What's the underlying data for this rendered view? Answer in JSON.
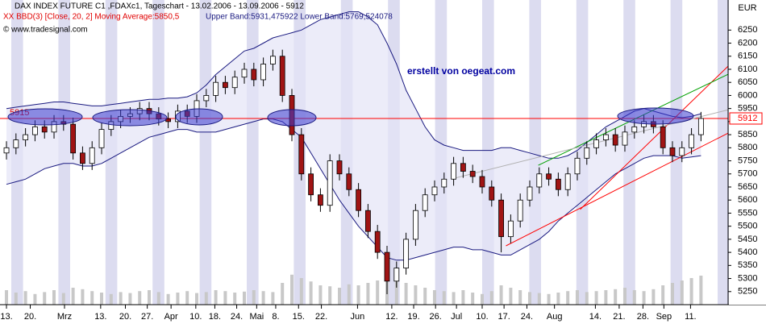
{
  "chart_data": {
    "type": "candlestick",
    "title": "DAX INDEX FUTURE C1 ,FDAXc1, Tageschart - 13.02.2006 - 13.09.2006 - 5912",
    "indicator_label": "XX BBD(3) [Close, 20, 2] Moving Average:5850,5",
    "band_label": "Upper Band:5931,475922 Lower Band:5769,524078",
    "copyright": "© www.tradesignal.com",
    "annotation": "erstellt von oegeat.com",
    "level_label": "5915",
    "y_axis_label": "EUR",
    "up_color": "#ffffff",
    "down_color": "#a01414",
    "band_color": "#1a1a80",
    "open": [
      5780,
      5800,
      5830,
      5850,
      5880,
      5860,
      5900,
      5890,
      5780,
      5740,
      5800,
      5870,
      5900,
      5920,
      5930,
      5950,
      5930,
      5910,
      5900,
      5940,
      5920,
      5980,
      6000,
      6050,
      6030,
      6070,
      6100,
      6060,
      6120,
      6150,
      6000,
      5850,
      5700,
      5620,
      5580,
      5750,
      5700,
      5640,
      5560,
      5480,
      5400,
      5290,
      5340,
      5450,
      5560,
      5620,
      5650,
      5680,
      5740,
      5710,
      5690,
      5650,
      5600,
      5460,
      5520,
      5600,
      5650,
      5700,
      5680,
      5640,
      5700,
      5760,
      5800,
      5830,
      5850,
      5810,
      5860,
      5880,
      5900,
      5880,
      5800,
      5770,
      5800,
      5850
    ],
    "high": [
      5825,
      5855,
      5875,
      5905,
      5905,
      5925,
      5925,
      5915,
      5805,
      5825,
      5895,
      5925,
      5945,
      5955,
      5975,
      5975,
      5955,
      5935,
      5965,
      5965,
      6005,
      6025,
      6075,
      6075,
      6095,
      6125,
      6125,
      6145,
      6175,
      6175,
      6025,
      5875,
      5725,
      5645,
      5775,
      5775,
      5725,
      5665,
      5585,
      5505,
      5425,
      5365,
      5475,
      5585,
      5645,
      5675,
      5705,
      5765,
      5765,
      5735,
      5715,
      5675,
      5625,
      5545,
      5625,
      5675,
      5725,
      5725,
      5705,
      5725,
      5785,
      5825,
      5855,
      5875,
      5875,
      5885,
      5905,
      5925,
      5925,
      5905,
      5825,
      5825,
      5875,
      5937
    ],
    "low": [
      5755,
      5775,
      5805,
      5825,
      5835,
      5835,
      5865,
      5755,
      5715,
      5715,
      5775,
      5845,
      5875,
      5895,
      5905,
      5905,
      5885,
      5875,
      5875,
      5895,
      5895,
      5955,
      5975,
      6005,
      6005,
      6045,
      6035,
      6035,
      6095,
      5975,
      5825,
      5675,
      5595,
      5555,
      5555,
      5675,
      5615,
      5535,
      5455,
      5375,
      5240,
      5265,
      5315,
      5425,
      5535,
      5595,
      5625,
      5655,
      5685,
      5665,
      5625,
      5575,
      5400,
      5435,
      5495,
      5575,
      5625,
      5655,
      5615,
      5615,
      5675,
      5735,
      5775,
      5805,
      5785,
      5785,
      5835,
      5855,
      5855,
      5775,
      5745,
      5745,
      5775,
      5825
    ],
    "close": [
      5800,
      5830,
      5850,
      5880,
      5860,
      5900,
      5890,
      5780,
      5740,
      5800,
      5870,
      5900,
      5920,
      5930,
      5950,
      5930,
      5910,
      5900,
      5940,
      5920,
      5980,
      6000,
      6050,
      6030,
      6070,
      6100,
      6060,
      6120,
      6150,
      6000,
      5850,
      5700,
      5620,
      5580,
      5750,
      5700,
      5640,
      5560,
      5480,
      5400,
      5290,
      5340,
      5450,
      5560,
      5620,
      5650,
      5680,
      5740,
      5710,
      5690,
      5650,
      5600,
      5460,
      5520,
      5600,
      5650,
      5700,
      5680,
      5640,
      5700,
      5760,
      5800,
      5830,
      5850,
      5810,
      5860,
      5880,
      5900,
      5880,
      5800,
      5770,
      5800,
      5850,
      5912
    ],
    "upper": [
      5950,
      5955,
      5960,
      5965,
      5970,
      5975,
      5975,
      5970,
      5965,
      5960,
      5960,
      5965,
      5970,
      5975,
      5980,
      5985,
      5985,
      5990,
      5990,
      5995,
      6010,
      6040,
      6080,
      6110,
      6140,
      6170,
      6180,
      6200,
      6220,
      6230,
      6240,
      6250,
      6270,
      6290,
      6300,
      6310,
      6320,
      6320,
      6300,
      6270,
      6200,
      6120,
      6020,
      5950,
      5880,
      5830,
      5810,
      5800,
      5790,
      5790,
      5790,
      5790,
      5800,
      5800,
      5790,
      5780,
      5770,
      5760,
      5760,
      5770,
      5790,
      5820,
      5850,
      5880,
      5900,
      5920,
      5940,
      5950,
      5940,
      5930,
      5920,
      5915,
      5920,
      5930
    ],
    "lower": [
      5660,
      5670,
      5680,
      5700,
      5720,
      5730,
      5740,
      5740,
      5730,
      5730,
      5740,
      5760,
      5780,
      5800,
      5820,
      5840,
      5850,
      5860,
      5870,
      5870,
      5860,
      5860,
      5860,
      5870,
      5880,
      5890,
      5900,
      5910,
      5910,
      5900,
      5870,
      5840,
      5780,
      5720,
      5660,
      5600,
      5550,
      5500,
      5460,
      5420,
      5380,
      5370,
      5370,
      5380,
      5390,
      5400,
      5410,
      5420,
      5420,
      5410,
      5410,
      5400,
      5390,
      5390,
      5410,
      5430,
      5450,
      5480,
      5520,
      5550,
      5580,
      5610,
      5640,
      5670,
      5700,
      5720,
      5740,
      5760,
      5770,
      5770,
      5770,
      5760,
      5765,
      5770
    ],
    "volume": [
      30,
      25,
      28,
      22,
      26,
      30,
      24,
      35,
      32,
      28,
      25,
      22,
      26,
      24,
      28,
      30,
      26,
      22,
      25,
      28,
      24,
      26,
      30,
      28,
      25,
      27,
      30,
      28,
      26,
      45,
      62,
      55,
      48,
      40,
      38,
      35,
      42,
      40,
      45,
      50,
      80,
      55,
      45,
      40,
      35,
      30,
      28,
      26,
      30,
      25,
      22,
      28,
      40,
      35,
      30,
      26,
      24,
      22,
      25,
      28,
      30,
      26,
      28,
      30,
      32,
      35,
      30,
      28,
      32,
      40,
      45,
      50,
      55,
      60
    ],
    "vlim": [
      0,
      100
    ],
    "hline": {
      "value": 5912,
      "color": "#ff0000"
    },
    "trendlines": [
      {
        "color": "#ff0000",
        "x": [
          52.5,
          75.85
        ],
        "y": [
          5425,
          5856
        ]
      },
      {
        "color": "#ff0000",
        "x": [
          60.3,
          75.85
        ],
        "y": [
          5564,
          6112
        ]
      },
      {
        "color": "#00a000",
        "x": [
          55.9,
          75.85
        ],
        "y": [
          5733,
          6081
        ]
      },
      {
        "color": "#b0b0b0",
        "x": [
          46.8,
          75.85
        ],
        "y": [
          5681,
          5945
        ]
      }
    ],
    "xlim": [
      -0.68,
      75.85
    ],
    "ylim": [
      5200,
      6365
    ],
    "yticks": [
      5250,
      5300,
      5350,
      5400,
      5450,
      5500,
      5550,
      5600,
      5650,
      5700,
      5750,
      5800,
      5850,
      5900,
      5950,
      6000,
      6050,
      6100,
      6150,
      6200,
      6250
    ],
    "xticks": [
      {
        "value": 0,
        "label": "13."
      },
      {
        "value": 2.5,
        "label": "20."
      },
      {
        "value": 6.1,
        "label": "Mrz"
      },
      {
        "value": 9.9,
        "label": "13."
      },
      {
        "value": 12.5,
        "label": "20."
      },
      {
        "value": 14.8,
        "label": "27."
      },
      {
        "value": 17.3,
        "label": "Apr"
      },
      {
        "value": 19.9,
        "label": "10."
      },
      {
        "value": 21.9,
        "label": "18."
      },
      {
        "value": 24.2,
        "label": "24."
      },
      {
        "value": 26.3,
        "label": "Mai"
      },
      {
        "value": 28.3,
        "label": "8."
      },
      {
        "value": 30.7,
        "label": "15."
      },
      {
        "value": 33.1,
        "label": "22."
      },
      {
        "value": 36.9,
        "label": "Jun"
      },
      {
        "value": 40.5,
        "label": "12."
      },
      {
        "value": 42.8,
        "label": "19."
      },
      {
        "value": 45.1,
        "label": "26."
      },
      {
        "value": 47.3,
        "label": "Jul"
      },
      {
        "value": 50.0,
        "label": "10."
      },
      {
        "value": 52.3,
        "label": "17."
      },
      {
        "value": 54.7,
        "label": "24."
      },
      {
        "value": 57.6,
        "label": "Aug"
      },
      {
        "value": 61.9,
        "label": "14."
      },
      {
        "value": 64.4,
        "label": "21."
      },
      {
        "value": 66.9,
        "label": "28."
      },
      {
        "value": 69.1,
        "label": "Sep"
      },
      {
        "value": 71.9,
        "label": "11."
      }
    ]
  }
}
